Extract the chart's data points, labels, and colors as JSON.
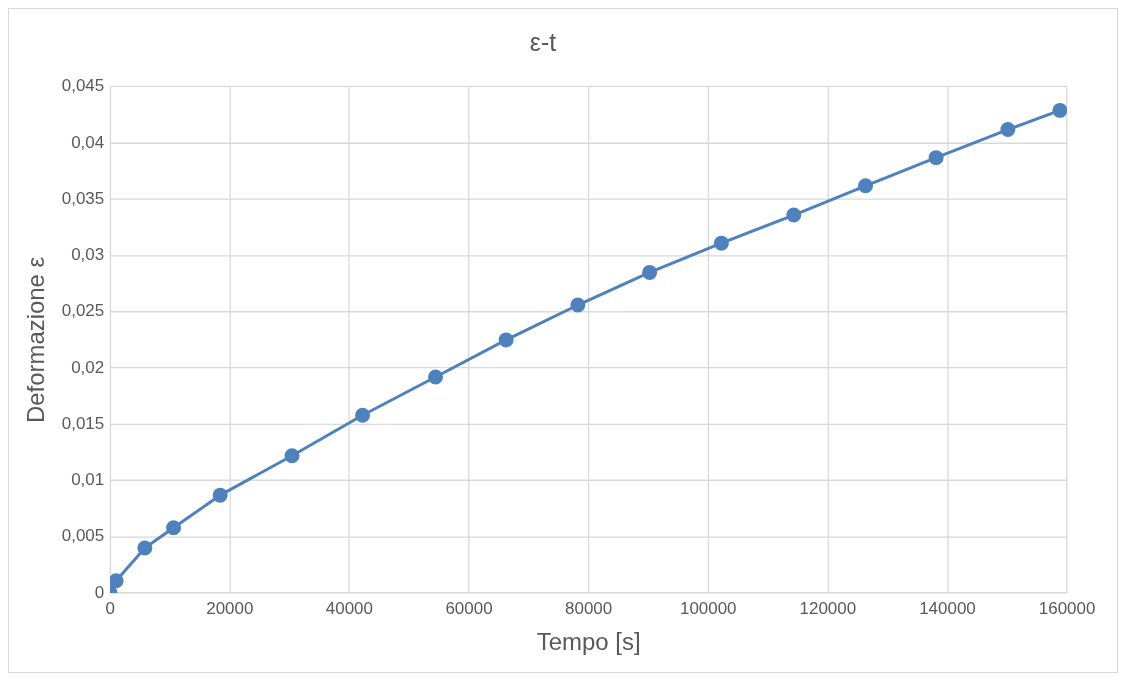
{
  "chart_data": {
    "type": "line",
    "title": "ε-t",
    "xlabel": "Tempo [s]",
    "ylabel": "Deformazione ε",
    "series": [
      {
        "color": "#4f81bd",
        "x": [
          0,
          1000,
          5800,
          10600,
          18400,
          30400,
          42200,
          54400,
          66200,
          78200,
          90200,
          102200,
          114300,
          126300,
          138100,
          150100,
          158800
        ],
        "values": [
          0,
          0.0011,
          0.004,
          0.0058,
          0.0087,
          0.0122,
          0.0158,
          0.0192,
          0.0225,
          0.0256,
          0.0285,
          0.0311,
          0.0336,
          0.0362,
          0.0387,
          0.0412,
          0.0429
        ]
      }
    ],
    "xlim": [
      0,
      160000
    ],
    "xticks": [
      0,
      20000,
      40000,
      60000,
      80000,
      100000,
      120000,
      140000,
      160000
    ],
    "ylim": [
      0,
      0.045
    ],
    "yticks": [
      {
        "value": 0,
        "label": "0"
      },
      {
        "value": 0.005,
        "label": "0,005"
      },
      {
        "value": 0.01,
        "label": "0,01"
      },
      {
        "value": 0.015,
        "label": "0,015"
      },
      {
        "value": 0.02,
        "label": "0,02"
      },
      {
        "value": 0.025,
        "label": "0,025"
      },
      {
        "value": 0.03,
        "label": "0,03"
      },
      {
        "value": 0.035,
        "label": "0,035"
      },
      {
        "value": 0.04,
        "label": "0,04"
      },
      {
        "value": 0.045,
        "label": "0,045"
      }
    ],
    "grid": true,
    "marker": "circle",
    "line_style": "solid"
  }
}
